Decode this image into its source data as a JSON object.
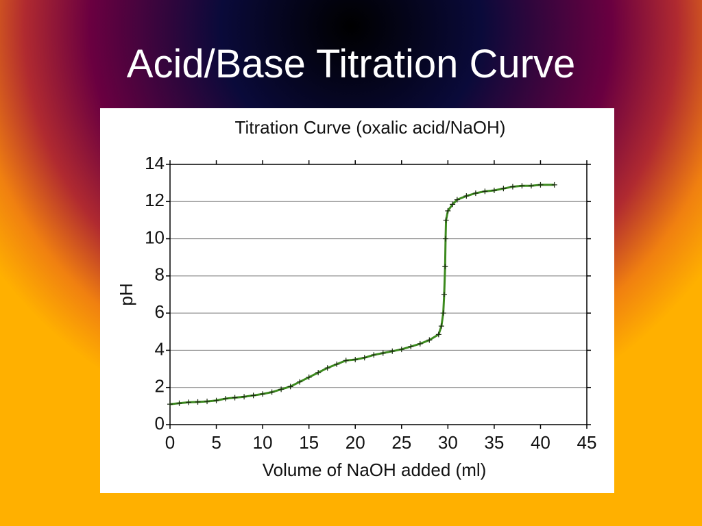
{
  "slide": {
    "title": "Acid/Base Titration Curve"
  },
  "chart_data": {
    "type": "line",
    "title": "Titration Curve (oxalic acid/NaOH)",
    "x_label": "Volume of NaOH added (ml)",
    "y_label": "pH",
    "x": [
      0,
      1,
      2,
      3,
      4,
      5,
      6,
      7,
      8,
      9,
      10,
      11,
      12,
      13,
      14,
      15,
      16,
      17,
      18,
      19,
      20,
      21,
      22,
      23,
      24,
      25,
      26,
      27,
      28,
      29,
      29.3,
      29.5,
      29.6,
      29.7,
      29.75,
      29.8,
      30,
      30.5,
      31,
      32,
      33,
      34,
      35,
      36,
      37,
      38,
      39,
      40,
      41.5
    ],
    "series": [
      {
        "color": "#3c8a1e",
        "marker_color": "#1a2a10",
        "values": [
          1.1,
          1.15,
          1.2,
          1.22,
          1.25,
          1.3,
          1.4,
          1.45,
          1.5,
          1.57,
          1.65,
          1.75,
          1.9,
          2.05,
          2.3,
          2.55,
          2.8,
          3.05,
          3.25,
          3.45,
          3.5,
          3.6,
          3.75,
          3.85,
          3.95,
          4.05,
          4.2,
          4.35,
          4.55,
          4.85,
          5.3,
          6.0,
          7.0,
          8.5,
          10.0,
          11.0,
          11.5,
          11.85,
          12.1,
          12.3,
          12.45,
          12.55,
          12.6,
          12.7,
          12.8,
          12.85,
          12.85,
          12.9,
          12.9
        ]
      }
    ],
    "xlim": [
      0,
      45
    ],
    "ylim": [
      0,
      14
    ],
    "xticks": [
      0,
      5,
      10,
      15,
      20,
      25,
      30,
      35,
      40,
      45
    ],
    "yticks": [
      0,
      2,
      4,
      6,
      8,
      10,
      12,
      14
    ],
    "grid": true,
    "marker": "cross"
  }
}
